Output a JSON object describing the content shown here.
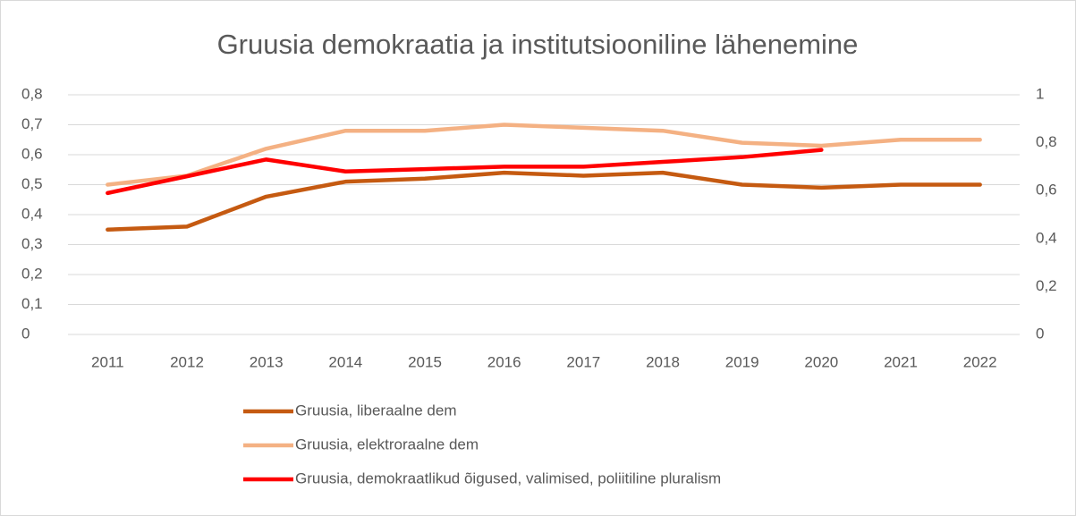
{
  "chart_data": {
    "type": "line",
    "title": "Gruusia demokraatia ja institutsiooniline lähenemine",
    "categories": [
      "2011",
      "2012",
      "2013",
      "2014",
      "2015",
      "2016",
      "2017",
      "2018",
      "2019",
      "2020",
      "2021",
      "2022"
    ],
    "series": [
      {
        "name": "Gruusia, liberaalne dem",
        "color": "#c55a11",
        "values": [
          0.35,
          0.36,
          0.46,
          0.51,
          0.52,
          0.54,
          0.53,
          0.54,
          0.5,
          0.49,
          0.5,
          0.5
        ]
      },
      {
        "name": "Gruusia, elektroraalne dem",
        "color": "#f4b183",
        "values": [
          0.5,
          0.53,
          0.62,
          0.68,
          0.68,
          0.7,
          0.69,
          0.68,
          0.64,
          0.63,
          0.65,
          0.65
        ]
      },
      {
        "name": "Gruusia, demokraatlikud õigused, valimised, poliitiline pluralism",
        "color": "#ff0000",
        "axis": "y2",
        "values": [
          0.59,
          0.66,
          0.73,
          0.68,
          0.69,
          0.7,
          0.7,
          0.72,
          0.74,
          0.77,
          null,
          null
        ]
      }
    ],
    "ylim": [
      0,
      0.8
    ],
    "yticks": [
      0,
      {
        "value": 0.1,
        "label": "0,1"
      },
      {
        "value": 0.2,
        "label": "0,2"
      },
      {
        "value": 0.3,
        "label": "0,3"
      },
      {
        "value": 0.4,
        "label": "0,4"
      },
      {
        "value": 0.5,
        "label": "0,5"
      },
      {
        "value": 0.6,
        "label": "0,6"
      },
      {
        "value": 0.7,
        "label": "0,7"
      },
      {
        "value": 0.8,
        "label": "0,8"
      }
    ],
    "y2lim": [
      0,
      1
    ],
    "y2ticks": [
      0,
      {
        "value": 0.2,
        "label": "0,2"
      },
      {
        "value": 0.4,
        "label": "0,4"
      },
      {
        "value": 0.6,
        "label": "0,6"
      },
      {
        "value": 0.8,
        "label": "0,8"
      },
      1
    ],
    "grid": true,
    "legend": "bottom"
  }
}
